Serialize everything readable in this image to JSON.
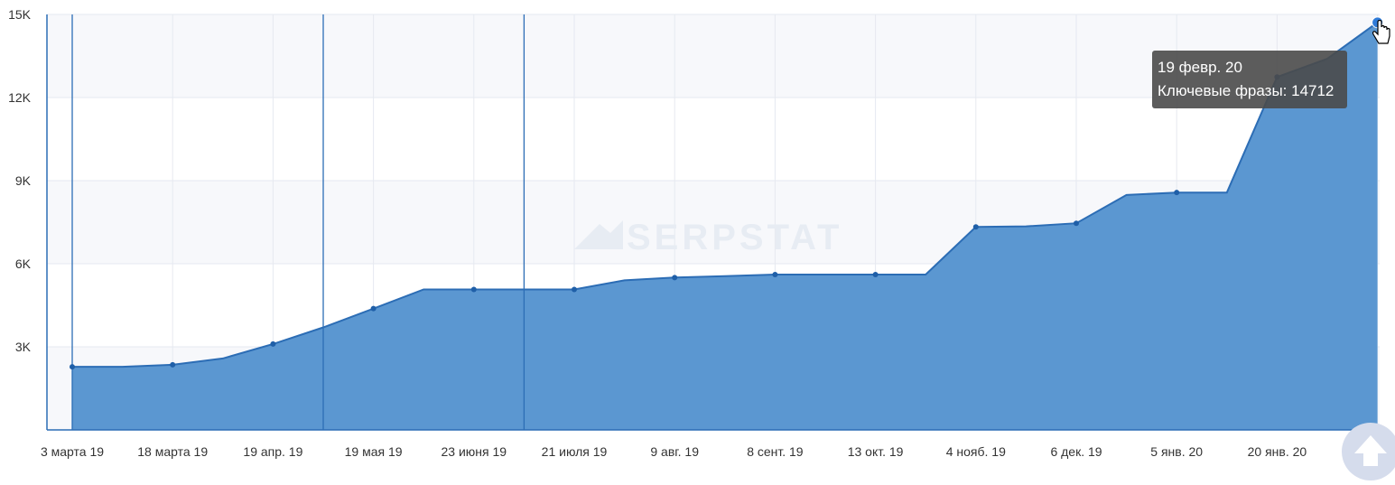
{
  "chart_data": {
    "type": "area",
    "x": [
      "3 марта 19",
      "18 марта 19",
      "19 апр. 19",
      "19 мая 19",
      "23 июня 19",
      "21 июля 19",
      "9 авг. 19",
      "8 сент. 19",
      "13 окт. 19",
      "4 нояб. 19",
      "6 дек. 19",
      "5 янв. 20",
      "20 янв. 20",
      "19 февр. 20"
    ],
    "x_tick_labels": [
      "3 марта 19",
      "18 марта 19",
      "19 апр. 19",
      "19 мая 19",
      "23 июня 19",
      "21 июля 19",
      "9 авг. 19",
      "8 сент. 19",
      "13 окт. 19",
      "4 нояб. 19",
      "6 дек. 19",
      "5 янв. 20",
      "20 янв. 20"
    ],
    "y_tick_labels": [
      "3K",
      "6K",
      "9K",
      "12K",
      "15K"
    ],
    "y_ticks": [
      3000,
      6000,
      9000,
      12000,
      15000
    ],
    "ylim": [
      0,
      15000
    ],
    "line_points": [
      [
        0,
        2280
      ],
      [
        0.5,
        2280
      ],
      [
        1,
        2350
      ],
      [
        1.5,
        2580
      ],
      [
        2,
        3100
      ],
      [
        2.5,
        3700
      ],
      [
        3,
        4380
      ],
      [
        3.5,
        5070
      ],
      [
        4,
        5070
      ],
      [
        4.5,
        5070
      ],
      [
        5,
        5070
      ],
      [
        5.5,
        5400
      ],
      [
        6,
        5500
      ],
      [
        6.5,
        5550
      ],
      [
        7,
        5610
      ],
      [
        7.5,
        5610
      ],
      [
        8,
        5610
      ],
      [
        8.5,
        5610
      ],
      [
        9,
        7330
      ],
      [
        9.5,
        7350
      ],
      [
        10,
        7460
      ],
      [
        10.5,
        8480
      ],
      [
        11,
        8570
      ],
      [
        11.5,
        8570
      ],
      [
        12,
        12740
      ],
      [
        12.5,
        13400
      ],
      [
        13,
        14712
      ]
    ],
    "marker_indices": [
      0,
      2,
      4,
      6,
      8,
      10,
      12,
      14,
      16,
      18,
      20,
      22,
      24,
      26
    ],
    "vertical_lines_at": [
      0,
      2.5,
      4.5
    ],
    "series": [
      {
        "name": "Ключевые фразы"
      }
    ],
    "grid": true,
    "colors": {
      "fill": "#5b97d1",
      "line": "#2c6db5",
      "grid": "#e6e9f0",
      "band": "#f7f8fb",
      "axis": "#2c6db5"
    },
    "watermark": "SERPSTAT",
    "tooltip": {
      "date": "19 февр. 20",
      "series_label": "Ключевые фразы",
      "value": "14712"
    }
  }
}
